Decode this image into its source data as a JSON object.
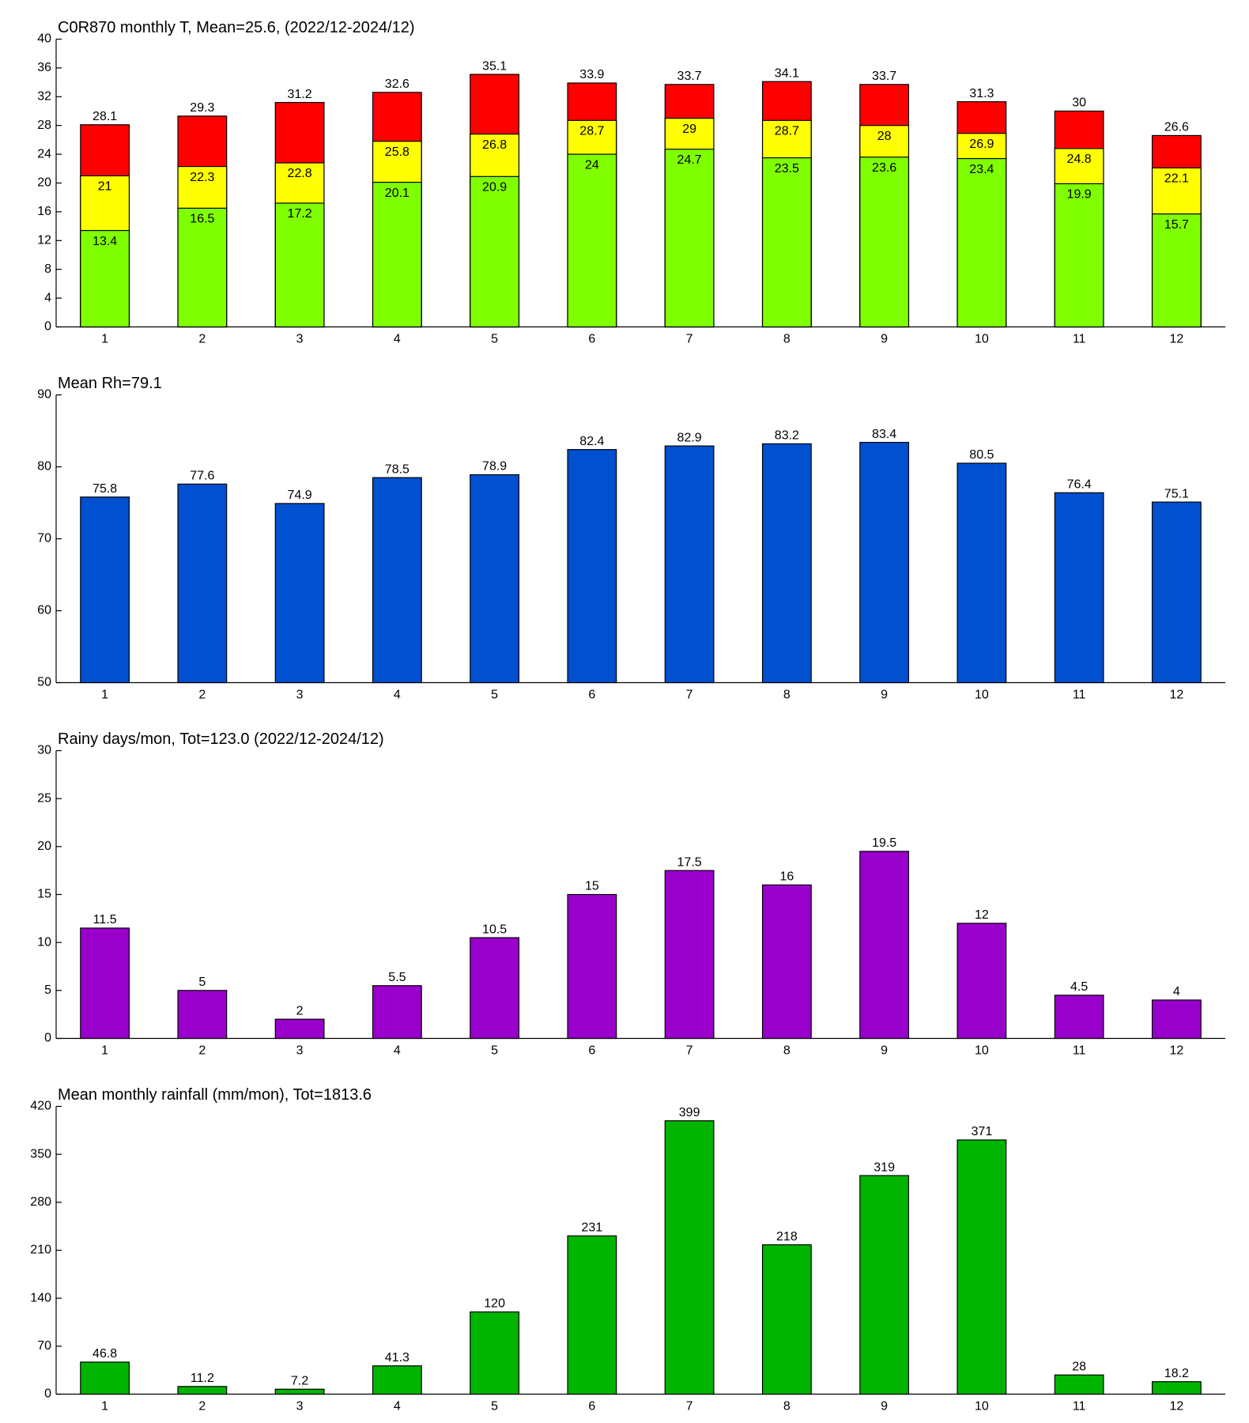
{
  "chart_data": [
    {
      "type": "bar",
      "title": "C0R870 monthly T, Mean=25.6, (2022/12-2024/12)",
      "categories": [
        "1",
        "2",
        "3",
        "4",
        "5",
        "6",
        "7",
        "8",
        "9",
        "10",
        "11",
        "12"
      ],
      "series": [
        {
          "color": "#ff0000",
          "values": [
            28.1,
            29.3,
            31.2,
            32.6,
            35.1,
            33.9,
            33.7,
            34.1,
            33.7,
            31.3,
            30,
            26.6
          ]
        },
        {
          "color": "#ffff00",
          "values": [
            21,
            22.3,
            22.8,
            25.8,
            26.8,
            28.7,
            29,
            28.7,
            28,
            26.9,
            24.8,
            22.1
          ]
        },
        {
          "color": "#80ff00",
          "values": [
            13.4,
            16.5,
            17.2,
            20.1,
            20.9,
            24,
            24.7,
            23.5,
            23.6,
            23.4,
            19.9,
            15.7
          ]
        }
      ],
      "ylim": [
        0,
        40
      ],
      "yticks": [
        0,
        4,
        8,
        12,
        16,
        20,
        24,
        28,
        32,
        36,
        40
      ],
      "grid": false
    },
    {
      "type": "bar",
      "title": "Mean Rh=79.1",
      "categories": [
        "1",
        "2",
        "3",
        "4",
        "5",
        "6",
        "7",
        "8",
        "9",
        "10",
        "11",
        "12"
      ],
      "values": [
        75.8,
        77.6,
        74.9,
        78.5,
        78.9,
        82.4,
        82.9,
        83.2,
        83.4,
        80.5,
        76.4,
        75.1
      ],
      "color": "#0050d0",
      "ylim": [
        50,
        90
      ],
      "yticks": [
        50,
        60,
        70,
        80,
        90
      ],
      "grid": false
    },
    {
      "type": "bar",
      "title": "Rainy days/mon, Tot=123.0 (2022/12-2024/12)",
      "categories": [
        "1",
        "2",
        "3",
        "4",
        "5",
        "6",
        "7",
        "8",
        "9",
        "10",
        "11",
        "12"
      ],
      "values": [
        11.5,
        5,
        2,
        5.5,
        10.5,
        15,
        17.5,
        16,
        19.5,
        12,
        4.5,
        4
      ],
      "color": "#9900cc",
      "ylim": [
        0,
        30
      ],
      "yticks": [
        0,
        5,
        10,
        15,
        20,
        25,
        30
      ],
      "grid": false
    },
    {
      "type": "bar",
      "title": "Mean monthly rainfall (mm/mon), Tot=1813.6",
      "categories": [
        "1",
        "2",
        "3",
        "4",
        "5",
        "6",
        "7",
        "8",
        "9",
        "10",
        "11",
        "12"
      ],
      "values": [
        46.8,
        11.2,
        7.2,
        41.3,
        120,
        231,
        399,
        218,
        319,
        371,
        28,
        18.2
      ],
      "color": "#00b400",
      "ylim": [
        0,
        420
      ],
      "yticks": [
        0,
        70,
        140,
        210,
        280,
        350,
        420
      ],
      "grid": false
    }
  ]
}
